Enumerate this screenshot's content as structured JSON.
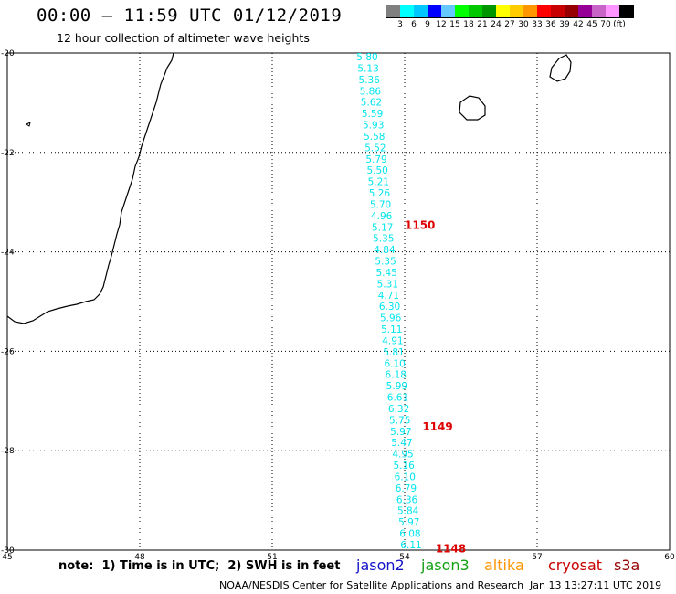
{
  "header": {
    "title": "00:00 – 11:59 UTC 01/12/2019",
    "subtitle": "12 hour collection of altimeter wave heights"
  },
  "legend": {
    "colors": [
      "#808080",
      "#00ffff",
      "#00c8ff",
      "#0000ff",
      "#64c8ff",
      "#00ff00",
      "#00c800",
      "#009600",
      "#ffff00",
      "#ffcc00",
      "#ff9600",
      "#ff0000",
      "#c80000",
      "#960000",
      "#960096",
      "#c864c8",
      "#ff96ff",
      "#000000"
    ],
    "labels": [
      "3",
      "6",
      "9",
      "12",
      "15",
      "18",
      "21",
      "24",
      "27",
      "30",
      "33",
      "36",
      "39",
      "42",
      "45",
      "70",
      "(ft)"
    ]
  },
  "map": {
    "lon_range": [
      45,
      60
    ],
    "lat_range": [
      -30,
      -20
    ],
    "lon_ticks": [
      "45",
      "48",
      "51",
      "54",
      "57",
      "60"
    ],
    "lat_ticks": [
      "-20",
      "-22",
      "-24",
      "-26",
      "-28",
      "-30"
    ],
    "track_values": [
      "5.80",
      "5.13",
      "5.36",
      "5.86",
      "5.62",
      "5.59",
      "5.93",
      "5.58",
      "5.52",
      "5.79",
      "5.50",
      "5.21",
      "5.26",
      "5.70",
      "4.96",
      "5.17",
      "5.35",
      "4.84",
      "5.35",
      "5.45",
      "5.31",
      "4.71",
      "6.30",
      "5.96",
      "5.11",
      "4.91",
      "5.81",
      "6.10",
      "6.18",
      "5.99",
      "6.61",
      "6.32",
      "5.75",
      "5.97",
      "5.47",
      "4.95",
      "5.16",
      "6.10",
      "6.79",
      "6.36",
      "5.84",
      "5.97",
      "6.08",
      "6.11"
    ],
    "track_color": "#00e5ee",
    "pass_labels": [
      {
        "text": "1150",
        "lon": 54.0,
        "lat": -23.45
      },
      {
        "text": "1149",
        "lon": 54.4,
        "lat": -27.5
      },
      {
        "text": "1148",
        "lon": 54.7,
        "lat": -29.95
      }
    ],
    "pass_color": "#dd0000"
  },
  "footer": {
    "note": "note:  1) Time is in UTC;  2) SWH is in feet",
    "satellites": [
      {
        "name": "jason2",
        "color": "#1414c8"
      },
      {
        "name": "jason3",
        "color": "#14a014"
      },
      {
        "name": "altika",
        "color": "#ff9600"
      },
      {
        "name": "cryosat",
        "color": "#c80000"
      },
      {
        "name": "s3a",
        "color": "#960000"
      }
    ],
    "credit": "NOAA/NESDIS Center for Satellite Applications and Research",
    "timestamp": "Jan 13 13:27:11 UTC 2019"
  }
}
